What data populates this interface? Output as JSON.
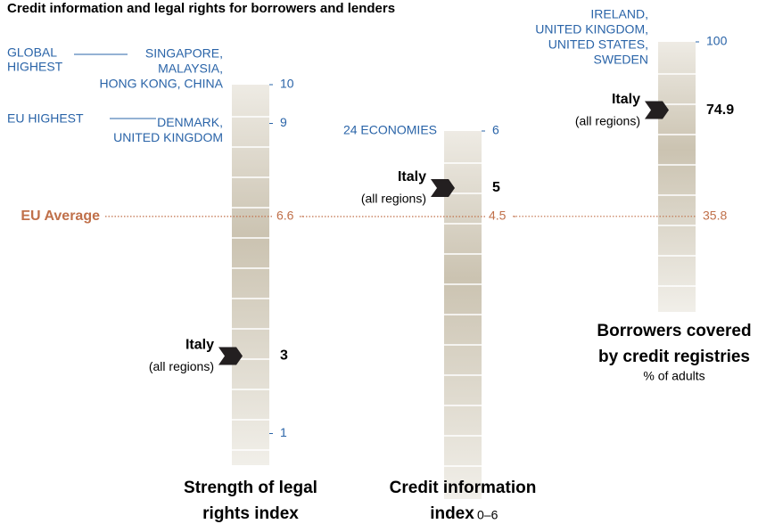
{
  "title": "Credit information and legal rights for borrowers and lenders",
  "eu_average_label": "EU Average",
  "chart_data": [
    {
      "type": "scale",
      "title": [
        "Strength of legal",
        "rights index"
      ],
      "ylim": [
        0,
        10
      ],
      "yticks": [
        10,
        9,
        1
      ],
      "annotations": [
        {
          "value": 10,
          "group": [
            "GLOBAL",
            "HIGHEST"
          ],
          "label": [
            "SINGAPORE,",
            "MALAYSIA,",
            "HONG KONG, CHINA"
          ]
        },
        {
          "value": 9,
          "group": [
            "EU HIGHEST"
          ],
          "label": [
            "DENMARK,",
            "UNITED KINGDOM"
          ]
        }
      ],
      "marker": {
        "label": "Italy",
        "sublabel": "(all regions)",
        "value": 3
      },
      "eu_average": 6.6
    },
    {
      "type": "scale",
      "title": [
        "Credit information",
        "index"
      ],
      "subtitle": "0–6",
      "ylim": [
        0,
        6
      ],
      "yticks": [
        6
      ],
      "annotations": [
        {
          "value": 6,
          "label": [
            "24 ECONOMIES"
          ]
        }
      ],
      "marker": {
        "label": "Italy",
        "sublabel": "(all regions)",
        "value": 5
      },
      "eu_average": 4.5
    },
    {
      "type": "scale",
      "title": [
        "Borrowers covered",
        "by credit registries"
      ],
      "subtitle": "% of adults",
      "ylim": [
        0,
        100
      ],
      "yticks": [
        100
      ],
      "annotations": [
        {
          "value": 100,
          "label": [
            "IRELAND,",
            "UNITED KINGDOM,",
            "UNITED STATES,",
            "SWEDEN"
          ]
        }
      ],
      "marker": {
        "label": "Italy",
        "sublabel": "(all regions)",
        "value": 74.9
      },
      "eu_average": 35.8
    }
  ]
}
